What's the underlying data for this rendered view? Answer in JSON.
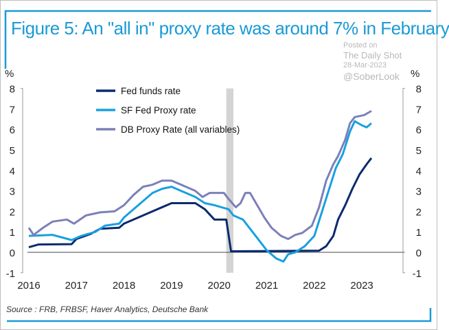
{
  "chart_data": {
    "type": "line",
    "title": "Figure 5: An \"all in\" proxy rate was around 7% in February",
    "ylabel_left": "%",
    "ylabel_right": "%",
    "ylim": [
      -1,
      8
    ],
    "xlim": [
      2016,
      2023.9
    ],
    "yticks": [
      "-1",
      "0",
      "1",
      "2",
      "3",
      "4",
      "5",
      "6",
      "7",
      "8"
    ],
    "xticks": [
      "2016",
      "2017",
      "2018",
      "2019",
      "2020",
      "2021",
      "2022",
      "2023"
    ],
    "shaded_period": [
      2020.15,
      2020.3
    ],
    "legend_position": "top-left",
    "source": "Source : FRB, FRBSF, Haver Analytics, Deutsche Bank",
    "series": [
      {
        "name": "Fed funds rate",
        "color": "#0a2a6e",
        "points": [
          [
            2016,
            0.25
          ],
          [
            2016.2,
            0.38
          ],
          [
            2016.9,
            0.4
          ],
          [
            2017.0,
            0.65
          ],
          [
            2017.3,
            0.9
          ],
          [
            2017.5,
            1.15
          ],
          [
            2017.9,
            1.2
          ],
          [
            2018.0,
            1.4
          ],
          [
            2018.3,
            1.7
          ],
          [
            2018.5,
            1.9
          ],
          [
            2018.8,
            2.2
          ],
          [
            2019.0,
            2.4
          ],
          [
            2019.5,
            2.4
          ],
          [
            2019.7,
            2.1
          ],
          [
            2019.9,
            1.6
          ],
          [
            2020.15,
            1.6
          ],
          [
            2020.25,
            0.05
          ],
          [
            2022.1,
            0.08
          ],
          [
            2022.25,
            0.3
          ],
          [
            2022.4,
            0.8
          ],
          [
            2022.5,
            1.6
          ],
          [
            2022.65,
            2.3
          ],
          [
            2022.8,
            3.1
          ],
          [
            2022.95,
            3.8
          ],
          [
            2023.1,
            4.3
          ],
          [
            2023.2,
            4.6
          ]
        ]
      },
      {
        "name": "SF Fed Proxy rate",
        "color": "#18a0e0",
        "points": [
          [
            2016,
            0.8
          ],
          [
            2016.5,
            0.85
          ],
          [
            2016.9,
            0.6
          ],
          [
            2017.1,
            0.8
          ],
          [
            2017.4,
            1.0
          ],
          [
            2017.6,
            1.3
          ],
          [
            2017.9,
            1.4
          ],
          [
            2018.0,
            1.7
          ],
          [
            2018.2,
            2.1
          ],
          [
            2018.4,
            2.5
          ],
          [
            2018.6,
            2.9
          ],
          [
            2018.8,
            3.1
          ],
          [
            2019.0,
            3.2
          ],
          [
            2019.2,
            3.0
          ],
          [
            2019.5,
            2.7
          ],
          [
            2019.7,
            2.4
          ],
          [
            2019.9,
            2.3
          ],
          [
            2020.2,
            2.1
          ],
          [
            2020.3,
            1.8
          ],
          [
            2020.5,
            1.6
          ],
          [
            2020.7,
            1.0
          ],
          [
            2020.9,
            0.4
          ],
          [
            2021.0,
            0.1
          ],
          [
            2021.2,
            -0.3
          ],
          [
            2021.35,
            -0.45
          ],
          [
            2021.45,
            -0.1
          ],
          [
            2021.6,
            0.0
          ],
          [
            2021.8,
            0.3
          ],
          [
            2022.0,
            0.8
          ],
          [
            2022.15,
            1.9
          ],
          [
            2022.3,
            3.0
          ],
          [
            2022.45,
            4.1
          ],
          [
            2022.6,
            4.8
          ],
          [
            2022.75,
            5.9
          ],
          [
            2022.85,
            6.4
          ],
          [
            2023.0,
            6.2
          ],
          [
            2023.1,
            6.1
          ],
          [
            2023.2,
            6.3
          ]
        ]
      },
      {
        "name": "DB Proxy Rate (all variables)",
        "color": "#7b80b8",
        "points": [
          [
            2016,
            1.2
          ],
          [
            2016.1,
            0.85
          ],
          [
            2016.3,
            1.2
          ],
          [
            2016.5,
            1.5
          ],
          [
            2016.8,
            1.6
          ],
          [
            2016.95,
            1.4
          ],
          [
            2017.2,
            1.8
          ],
          [
            2017.5,
            1.95
          ],
          [
            2017.8,
            2.0
          ],
          [
            2018.0,
            2.3
          ],
          [
            2018.2,
            2.8
          ],
          [
            2018.4,
            3.2
          ],
          [
            2018.6,
            3.3
          ],
          [
            2018.8,
            3.5
          ],
          [
            2019.0,
            3.5
          ],
          [
            2019.2,
            3.3
          ],
          [
            2019.5,
            3.0
          ],
          [
            2019.65,
            2.7
          ],
          [
            2019.8,
            2.9
          ],
          [
            2020.1,
            2.9
          ],
          [
            2020.2,
            2.6
          ],
          [
            2020.35,
            2.2
          ],
          [
            2020.45,
            2.4
          ],
          [
            2020.55,
            2.9
          ],
          [
            2020.65,
            2.9
          ],
          [
            2020.8,
            2.3
          ],
          [
            2020.95,
            1.7
          ],
          [
            2021.1,
            1.2
          ],
          [
            2021.3,
            0.8
          ],
          [
            2021.45,
            0.65
          ],
          [
            2021.6,
            0.85
          ],
          [
            2021.75,
            0.95
          ],
          [
            2021.95,
            1.3
          ],
          [
            2022.1,
            2.2
          ],
          [
            2022.25,
            3.5
          ],
          [
            2022.4,
            4.3
          ],
          [
            2022.5,
            4.7
          ],
          [
            2022.65,
            5.5
          ],
          [
            2022.75,
            6.3
          ],
          [
            2022.85,
            6.6
          ],
          [
            2023.05,
            6.7
          ],
          [
            2023.2,
            6.9
          ]
        ]
      }
    ]
  },
  "watermark": {
    "posted": "Posted on",
    "site": "The Daily Shot",
    "date": "28-Mar-2023",
    "handle": "@SoberLook"
  },
  "colors": {
    "accent": "#1a9ad6",
    "shade": "#d4d4d4"
  }
}
